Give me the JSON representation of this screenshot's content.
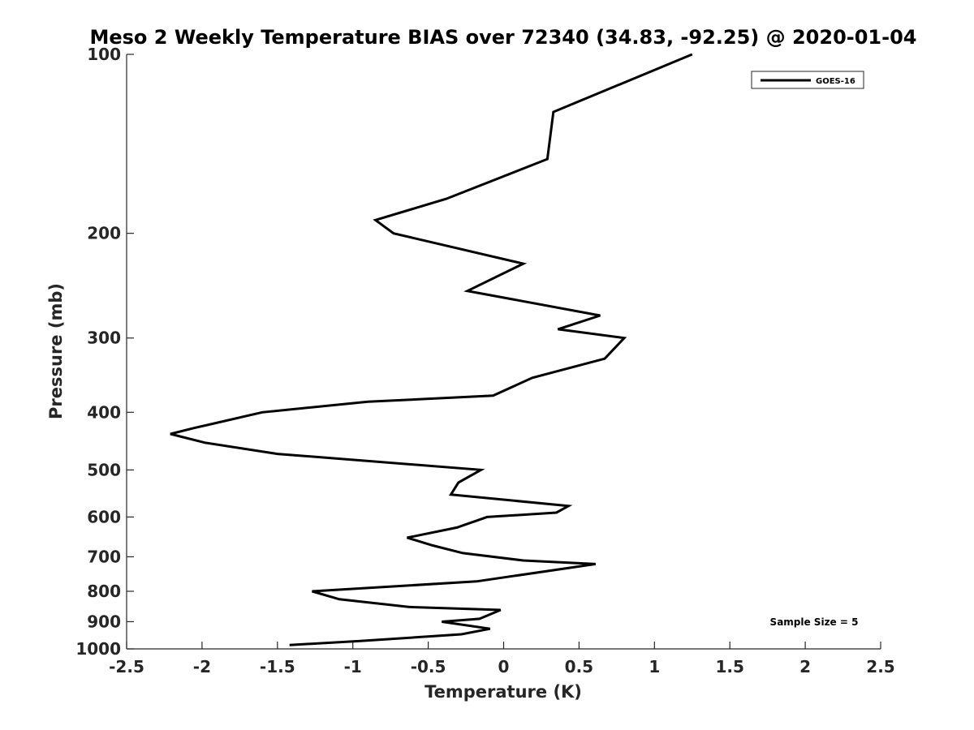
{
  "chart_data": {
    "type": "line",
    "title": "Meso 2 Weekly Temperature BIAS over 72340 (34.83, -92.25) @ 2020-01-04",
    "xlabel": "Temperature (K)",
    "ylabel": "Pressure (mb)",
    "xlim": [
      -2.5,
      2.5
    ],
    "ylim": [
      100,
      1000
    ],
    "y_scale": "log",
    "y_reversed": true,
    "x_ticks": [
      -2.5,
      -2,
      -1.5,
      -1,
      -0.5,
      0,
      0.5,
      1,
      1.5,
      2,
      2.5
    ],
    "x_tick_labels": [
      "-2.5",
      "-2",
      "-1.5",
      "-1",
      "-0.5",
      "0",
      "0.5",
      "1",
      "1.5",
      "2",
      "2.5"
    ],
    "y_ticks": [
      100,
      200,
      300,
      400,
      500,
      600,
      700,
      800,
      900,
      1000
    ],
    "y_tick_labels": [
      "100",
      "200",
      "300",
      "400",
      "500",
      "600",
      "700",
      "800",
      "900",
      "1000"
    ],
    "grid": false,
    "legend_position": "top-right",
    "series": [
      {
        "name": "GOES-16",
        "color": "#000000",
        "points": [
          {
            "x": 1.25,
            "p": 100
          },
          {
            "x": 0.33,
            "p": 125
          },
          {
            "x": 0.29,
            "p": 150
          },
          {
            "x": -0.38,
            "p": 175
          },
          {
            "x": -0.85,
            "p": 190
          },
          {
            "x": -0.73,
            "p": 200
          },
          {
            "x": 0.13,
            "p": 225
          },
          {
            "x": -0.24,
            "p": 250
          },
          {
            "x": 0.64,
            "p": 275
          },
          {
            "x": 0.36,
            "p": 290
          },
          {
            "x": 0.8,
            "p": 300
          },
          {
            "x": 0.67,
            "p": 325
          },
          {
            "x": 0.19,
            "p": 350
          },
          {
            "x": -0.07,
            "p": 375
          },
          {
            "x": -0.9,
            "p": 384
          },
          {
            "x": -1.6,
            "p": 400
          },
          {
            "x": -2.05,
            "p": 425
          },
          {
            "x": -2.21,
            "p": 435
          },
          {
            "x": -1.98,
            "p": 450
          },
          {
            "x": -1.5,
            "p": 470
          },
          {
            "x": -0.15,
            "p": 500
          },
          {
            "x": -0.3,
            "p": 525
          },
          {
            "x": -0.35,
            "p": 550
          },
          {
            "x": 0.43,
            "p": 575
          },
          {
            "x": 0.35,
            "p": 590
          },
          {
            "x": -0.11,
            "p": 600
          },
          {
            "x": -0.31,
            "p": 625
          },
          {
            "x": -0.64,
            "p": 650
          },
          {
            "x": -0.47,
            "p": 670
          },
          {
            "x": -0.27,
            "p": 690
          },
          {
            "x": 0.13,
            "p": 710
          },
          {
            "x": 0.61,
            "p": 720
          },
          {
            "x": -0.18,
            "p": 770
          },
          {
            "x": -1.27,
            "p": 800
          },
          {
            "x": -1.09,
            "p": 825
          },
          {
            "x": -0.63,
            "p": 850
          },
          {
            "x": -0.02,
            "p": 860
          },
          {
            "x": -0.16,
            "p": 890
          },
          {
            "x": -0.41,
            "p": 900
          },
          {
            "x": -0.09,
            "p": 925
          },
          {
            "x": -0.28,
            "p": 945
          },
          {
            "x": -0.95,
            "p": 970
          },
          {
            "x": -1.42,
            "p": 985
          }
        ]
      }
    ],
    "annotations": [
      "Sample Size = 5"
    ]
  }
}
